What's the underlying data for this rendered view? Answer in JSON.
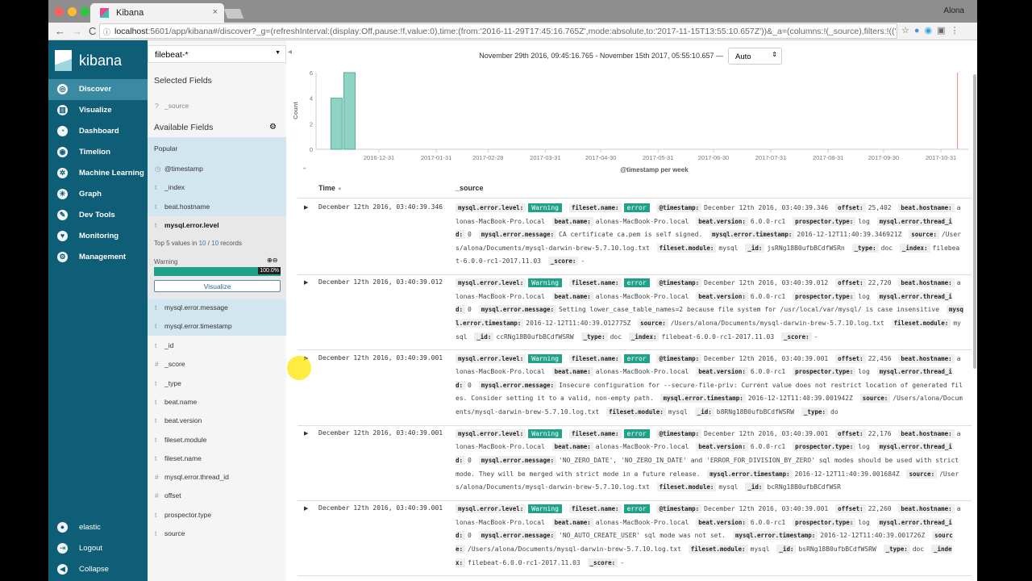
{
  "browser": {
    "tab_title": "Kibana",
    "user": "Alona",
    "url_host": "localhost",
    "url_rest": ":5601/app/kibana#/discover?_g=(refreshInterval:(display:Off,pause:!f,value:0),time:(from:'2016-11-29T17:45:16.765Z',mode:absolute,to:'2017-11-15T13:55:10.657Z'))&_a=(columns:!(_source),filters:!(('$..."
  },
  "sidenav": {
    "brand": "kibana",
    "items": [
      {
        "label": "Discover",
        "icon": "compass-icon",
        "active": true
      },
      {
        "label": "Visualize",
        "icon": "bar-chart-icon"
      },
      {
        "label": "Dashboard",
        "icon": "dashboard-icon"
      },
      {
        "label": "Timelion",
        "icon": "timelion-icon"
      },
      {
        "label": "Machine Learning",
        "icon": "ml-icon"
      },
      {
        "label": "Graph",
        "icon": "graph-icon"
      },
      {
        "label": "Dev Tools",
        "icon": "wrench-icon"
      },
      {
        "label": "Monitoring",
        "icon": "heartbeat-icon"
      },
      {
        "label": "Management",
        "icon": "gear-icon"
      }
    ],
    "bottom": [
      {
        "label": "elastic",
        "icon": "user-icon"
      },
      {
        "label": "Logout",
        "icon": "logout-icon"
      },
      {
        "label": "Collapse",
        "icon": "collapse-icon"
      }
    ]
  },
  "fields": {
    "index_pattern": "filebeat-*",
    "selected_title": "Selected Fields",
    "selected": [
      {
        "type": "?",
        "name": "_source"
      }
    ],
    "available_title": "Available Fields",
    "popular_label": "Popular",
    "popular": [
      {
        "type": "◷",
        "name": "@timestamp"
      },
      {
        "type": "t",
        "name": "_index"
      },
      {
        "type": "t",
        "name": "beat.hostname"
      }
    ],
    "expanded": {
      "type": "t",
      "name": "mysql.error.level",
      "summary_prefix": "Top 5 values in ",
      "count": "10",
      "total": "10",
      "summary_suffix": " records",
      "value": "Warning",
      "percent": 100,
      "percent_label": "100.0%",
      "visualize": "Visualize"
    },
    "highlighted": [
      {
        "type": "t",
        "name": "mysql.error.message"
      },
      {
        "type": "t",
        "name": "mysql.error.timestamp"
      }
    ],
    "others": [
      {
        "type": "t",
        "name": "_id"
      },
      {
        "type": "#",
        "name": "_score"
      },
      {
        "type": "t",
        "name": "_type"
      },
      {
        "type": "t",
        "name": "beat.name"
      },
      {
        "type": "t",
        "name": "beat.version"
      },
      {
        "type": "t",
        "name": "fileset.module"
      },
      {
        "type": "t",
        "name": "fileset.name"
      },
      {
        "type": "#",
        "name": "mysql.error.thread_id"
      },
      {
        "type": "#",
        "name": "offset"
      },
      {
        "type": "t",
        "name": "prospector.type"
      },
      {
        "type": "t",
        "name": "source"
      }
    ]
  },
  "main": {
    "time_range": "November 29th 2016, 09:45:16.765 - November 15th 2017, 05:55:10.657 —",
    "interval": "Auto",
    "col_time": "Time",
    "col_source": "_source",
    "highlight_color": "#1fa287"
  },
  "chart_data": {
    "type": "bar",
    "ylabel": "Count",
    "xlabel": "@timestamp per week",
    "ylim": [
      0,
      6
    ],
    "yticks": [
      0,
      2,
      4,
      6
    ],
    "xlim": [
      "2016-11-29",
      "2017-11-15"
    ],
    "xticks": [
      "2016-12-31",
      "2017-01-31",
      "2017-02-28",
      "2017-03-31",
      "2017-04-30",
      "2017-05-31",
      "2017-06-30",
      "2017-07-31",
      "2017-08-31",
      "2017-09-30",
      "2017-10-31"
    ],
    "x": [
      "2016-12-05",
      "2016-12-12"
    ],
    "values": [
      4,
      6
    ],
    "bar_color": "#8fd3c4",
    "now_marker": "2017-11-09",
    "grid": false
  },
  "highlight_keys": [
    "mysql.error.level",
    "fileset.name"
  ],
  "docs": [
    {
      "time": "December 12th 2016, 03:40:39.346",
      "fields": [
        [
          "mysql.error.level",
          "Warning"
        ],
        [
          "fileset.name",
          "error"
        ],
        [
          "@timestamp",
          "December 12th 2016, 03:40:39.346"
        ],
        [
          "offset",
          "25,402"
        ],
        [
          "beat.hostname",
          "alonas-MacBook-Pro.local"
        ],
        [
          "beat.name",
          "alonas-MacBook-Pro.local"
        ],
        [
          "beat.version",
          "6.0.0-rc1"
        ],
        [
          "prospector.type",
          "log"
        ],
        [
          "mysql.error.thread_id",
          "0"
        ],
        [
          "mysql.error.message",
          "CA certificate ca.pem is self signed."
        ],
        [
          "mysql.error.timestamp",
          "2016-12-12T11:40:39.346921Z"
        ],
        [
          "source",
          "/Users/alona/Documents/mysql-darwin-brew-5.7.10.log.txt"
        ],
        [
          "fileset.module",
          "mysql"
        ],
        [
          "_id",
          "jsRNg18B0ufbBCdfWSRn"
        ],
        [
          "_type",
          "doc"
        ],
        [
          "_index",
          "filebeat-6.0.0-rc1-2017.11.03"
        ],
        [
          "_score",
          "-"
        ]
      ]
    },
    {
      "time": "December 12th 2016, 03:40:39.012",
      "fields": [
        [
          "mysql.error.level",
          "Warning"
        ],
        [
          "fileset.name",
          "error"
        ],
        [
          "@timestamp",
          "December 12th 2016, 03:40:39.012"
        ],
        [
          "offset",
          "22,720"
        ],
        [
          "beat.hostname",
          "alonas-MacBook-Pro.local"
        ],
        [
          "beat.name",
          "alonas-MacBook-Pro.local"
        ],
        [
          "beat.version",
          "6.0.0-rc1"
        ],
        [
          "prospector.type",
          "log"
        ],
        [
          "mysql.error.thread_id",
          "0"
        ],
        [
          "mysql.error.message",
          "Setting lower_case_table_names=2 because file system for /usr/local/var/mysql/ is case insensitive"
        ],
        [
          "mysql.error.timestamp",
          "2016-12-12T11:40:39.012775Z"
        ],
        [
          "source",
          "/Users/alona/Documents/mysql-darwin-brew-5.7.10.log.txt"
        ],
        [
          "fileset.module",
          "mysql"
        ],
        [
          "_id",
          "ccRNg18B0ufbBCdfWSRW"
        ],
        [
          "_type",
          "doc"
        ],
        [
          "_index",
          "filebeat-6.0.0-rc1-2017.11.03"
        ],
        [
          "_score",
          "-"
        ]
      ]
    },
    {
      "time": "December 12th 2016, 03:40:39.001",
      "fields": [
        [
          "mysql.error.level",
          "Warning"
        ],
        [
          "fileset.name",
          "error"
        ],
        [
          "@timestamp",
          "December 12th 2016, 03:40:39.001"
        ],
        [
          "offset",
          "22,456"
        ],
        [
          "beat.hostname",
          "alonas-MacBook-Pro.local"
        ],
        [
          "beat.name",
          "alonas-MacBook-Pro.local"
        ],
        [
          "beat.version",
          "6.0.0-rc1"
        ],
        [
          "prospector.type",
          "log"
        ],
        [
          "mysql.error.thread_id",
          "0"
        ],
        [
          "mysql.error.message",
          "Insecure configuration for --secure-file-priv: Current value does not restrict location of generated files. Consider setting it to a valid, non-empty path."
        ],
        [
          "mysql.error.timestamp",
          "2016-12-12T11:40:39.001942Z"
        ],
        [
          "source",
          "/Users/alona/Documents/mysql-darwin-brew-5.7.10.log.txt"
        ],
        [
          "fileset.module",
          "mysql"
        ],
        [
          "_id",
          "b8RNg18B0ufbBCdfWSRW"
        ],
        [
          "_type",
          "do"
        ]
      ]
    },
    {
      "time": "December 12th 2016, 03:40:39.001",
      "fields": [
        [
          "mysql.error.level",
          "Warning"
        ],
        [
          "fileset.name",
          "error"
        ],
        [
          "@timestamp",
          "December 12th 2016, 03:40:39.001"
        ],
        [
          "offset",
          "22,176"
        ],
        [
          "beat.hostname",
          "alonas-MacBook-Pro.local"
        ],
        [
          "beat.name",
          "alonas-MacBook-Pro.local"
        ],
        [
          "beat.version",
          "6.0.0-rc1"
        ],
        [
          "prospector.type",
          "log"
        ],
        [
          "mysql.error.thread_id",
          "0"
        ],
        [
          "mysql.error.message",
          "'NO_ZERO_DATE', 'NO_ZERO_IN_DATE' and 'ERROR_FOR_DIVISION_BY_ZERO' sql modes should be used with strict mode. They will be merged with strict mode in a future release."
        ],
        [
          "mysql.error.timestamp",
          "2016-12-12T11:40:39.001684Z"
        ],
        [
          "source",
          "/Users/alona/Documents/mysql-darwin-brew-5.7.10.log.txt"
        ],
        [
          "fileset.module",
          "mysql"
        ],
        [
          "_id",
          "bcRNg18B0ufbBCdfWSR"
        ]
      ]
    },
    {
      "time": "December 12th 2016, 03:40:39.001",
      "fields": [
        [
          "mysql.error.level",
          "Warning"
        ],
        [
          "fileset.name",
          "error"
        ],
        [
          "@timestamp",
          "December 12th 2016, 03:40:39.001"
        ],
        [
          "offset",
          "22,260"
        ],
        [
          "beat.hostname",
          "alonas-MacBook-Pro.local"
        ],
        [
          "beat.name",
          "alonas-MacBook-Pro.local"
        ],
        [
          "beat.version",
          "6.0.0-rc1"
        ],
        [
          "prospector.type",
          "log"
        ],
        [
          "mysql.error.thread_id",
          "0"
        ],
        [
          "mysql.error.message",
          "'NO_AUTO_CREATE_USER' sql mode was not set."
        ],
        [
          "mysql.error.timestamp",
          "2016-12-12T11:40:39.001726Z"
        ],
        [
          "source",
          "/Users/alona/Documents/mysql-darwin-brew-5.7.10.log.txt"
        ],
        [
          "fileset.module",
          "mysql"
        ],
        [
          "_id",
          "bsRNg18B0ufbBCdfWSRW"
        ],
        [
          "_type",
          "doc"
        ],
        [
          "_index",
          "filebeat-6.0.0-rc1-2017.11.03"
        ],
        [
          "_score",
          "-"
        ]
      ]
    }
  ]
}
